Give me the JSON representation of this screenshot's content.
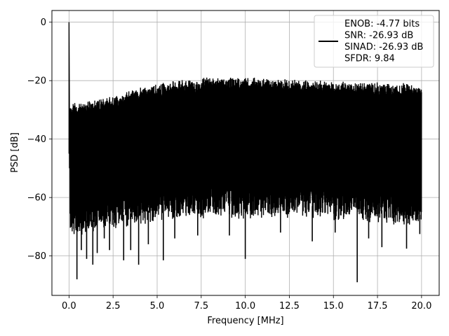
{
  "chart_data": {
    "type": "line",
    "title": "",
    "xlabel": "Frequency [MHz]",
    "ylabel": "PSD [dB]",
    "xlim": [
      -0.97,
      21.0
    ],
    "ylim": [
      -93.5,
      4.0
    ],
    "xticks": [
      0.0,
      2.5,
      5.0,
      7.5,
      10.0,
      12.5,
      15.0,
      17.5,
      20.0
    ],
    "xtick_labels": [
      "0.0",
      "2.5",
      "5.0",
      "7.5",
      "10.0",
      "12.5",
      "15.0",
      "17.5",
      "20.0"
    ],
    "yticks": [
      0,
      -20,
      -40,
      -60,
      -80
    ],
    "ytick_labels": [
      "0",
      "−20",
      "−40",
      "−60",
      "−80"
    ],
    "grid": true,
    "legend_position": "top-right",
    "series": [
      {
        "name": "ENOB: -4.77 bits\nSNR: -26.93 dB\nSINAD: -26.93 dB\nSFDR: 9.84",
        "color": "#000000",
        "envelope": {
          "x": [
            0.05,
            0.5,
            1.0,
            2.0,
            3.0,
            4.0,
            5.0,
            6.0,
            7.0,
            8.0,
            9.0,
            10.0,
            11.0,
            12.0,
            13.0,
            14.0,
            15.0,
            16.0,
            17.0,
            18.0,
            19.0,
            20.0
          ],
          "upper": [
            -28.5,
            -29.0,
            -28.5,
            -27.0,
            -25.5,
            -23.5,
            -22.5,
            -21.5,
            -20.8,
            -20.2,
            -19.8,
            -20.0,
            -20.3,
            -20.6,
            -20.9,
            -21.2,
            -21.5,
            -21.7,
            -21.9,
            -22.1,
            -22.3,
            -22.5
          ],
          "lower": [
            -70.0,
            -71.0,
            -70.0,
            -69.0,
            -68.0,
            -67.0,
            -66.0,
            -65.5,
            -65.0,
            -64.5,
            -64.5,
            -64.5,
            -64.5,
            -64.5,
            -64.5,
            -65.0,
            -65.0,
            -65.5,
            -66.0,
            -66.5,
            -67.0,
            -68.0
          ]
        },
        "spike": {
          "x": 0.0,
          "y": 0.0
        },
        "deep_dips": [
          {
            "x": 0.45,
            "y": -88.0
          },
          {
            "x": 0.7,
            "y": -78.0
          },
          {
            "x": 1.0,
            "y": -81.0
          },
          {
            "x": 1.35,
            "y": -83.0
          },
          {
            "x": 1.6,
            "y": -79.0
          },
          {
            "x": 2.0,
            "y": -74.0
          },
          {
            "x": 2.3,
            "y": -78.0
          },
          {
            "x": 3.1,
            "y": -81.5
          },
          {
            "x": 3.5,
            "y": -78.0
          },
          {
            "x": 3.95,
            "y": -83.0
          },
          {
            "x": 4.5,
            "y": -76.0
          },
          {
            "x": 5.35,
            "y": -81.5
          },
          {
            "x": 6.0,
            "y": -74.0
          },
          {
            "x": 7.3,
            "y": -73.0
          },
          {
            "x": 9.1,
            "y": -73.0
          },
          {
            "x": 10.0,
            "y": -81.0
          },
          {
            "x": 12.0,
            "y": -72.0
          },
          {
            "x": 13.8,
            "y": -75.0
          },
          {
            "x": 15.1,
            "y": -72.0
          },
          {
            "x": 16.35,
            "y": -89.0
          },
          {
            "x": 17.0,
            "y": -74.0
          },
          {
            "x": 17.75,
            "y": -77.0
          },
          {
            "x": 19.15,
            "y": -77.5
          },
          {
            "x": 19.9,
            "y": -72.5
          }
        ]
      }
    ]
  }
}
